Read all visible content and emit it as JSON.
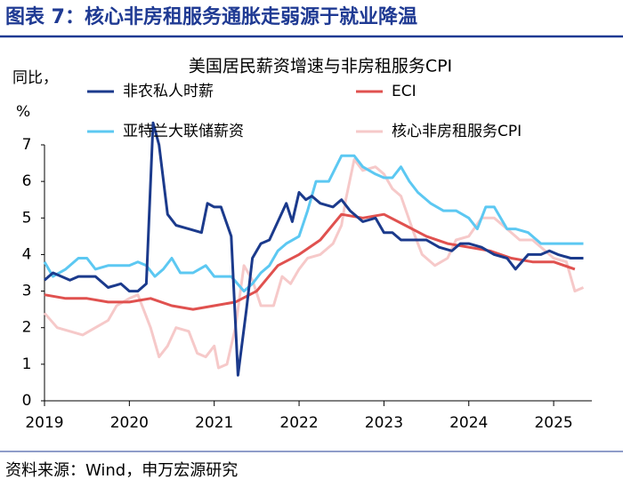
{
  "header": {
    "title": "图表 7：核心非房租服务通胀走弱源于就业降温"
  },
  "chart_data": {
    "type": "line",
    "title": "美国居民薪资增速与非房租服务CPI",
    "y_label": [
      "同比，",
      "%"
    ],
    "xlim": [
      2019,
      2025.45
    ],
    "xticks": [
      2019,
      2020,
      2021,
      2022,
      2023,
      2024,
      2025
    ],
    "ylim": [
      0,
      7
    ],
    "yticks": [
      0,
      1,
      2,
      3,
      4,
      5,
      6,
      7
    ],
    "grid": false,
    "legend": "top",
    "series": [
      {
        "name": "非农私人时薪",
        "color": "#1b3a8c",
        "x": [
          2019.0,
          2019.1,
          2019.2,
          2019.3,
          2019.4,
          2019.5,
          2019.6,
          2019.75,
          2019.9,
          2020.0,
          2020.1,
          2020.2,
          2020.28,
          2020.35,
          2020.45,
          2020.55,
          2020.7,
          2020.85,
          2020.92,
          2021.0,
          2021.08,
          2021.2,
          2021.28,
          2021.38,
          2021.45,
          2021.55,
          2021.65,
          2021.75,
          2021.85,
          2021.92,
          2022.0,
          2022.08,
          2022.15,
          2022.25,
          2022.4,
          2022.5,
          2022.6,
          2022.75,
          2022.9,
          2023.0,
          2023.1,
          2023.2,
          2023.35,
          2023.5,
          2023.65,
          2023.8,
          2023.9,
          2024.0,
          2024.15,
          2024.3,
          2024.45,
          2024.55,
          2024.7,
          2024.85,
          2024.95,
          2025.05,
          2025.2,
          2025.35
        ],
        "values": [
          3.3,
          3.5,
          3.4,
          3.3,
          3.4,
          3.4,
          3.4,
          3.1,
          3.2,
          3.0,
          3.0,
          3.2,
          7.6,
          7.0,
          5.1,
          4.8,
          4.7,
          4.6,
          5.4,
          5.3,
          5.3,
          4.5,
          0.7,
          2.5,
          3.9,
          4.3,
          4.4,
          4.9,
          5.4,
          4.9,
          5.7,
          5.5,
          5.6,
          5.4,
          5.3,
          5.5,
          5.2,
          4.9,
          5.0,
          4.6,
          4.6,
          4.4,
          4.4,
          4.4,
          4.2,
          4.1,
          4.3,
          4.3,
          4.2,
          4.0,
          3.9,
          3.6,
          4.0,
          4.0,
          4.1,
          4.0,
          3.9,
          3.9
        ]
      },
      {
        "name": "ECI",
        "color": "#e0514f",
        "x": [
          2019.0,
          2019.25,
          2019.5,
          2019.75,
          2020.0,
          2020.25,
          2020.5,
          2020.75,
          2021.0,
          2021.25,
          2021.5,
          2021.75,
          2022.0,
          2022.25,
          2022.5,
          2022.75,
          2023.0,
          2023.25,
          2023.5,
          2023.75,
          2024.0,
          2024.25,
          2024.5,
          2024.75,
          2025.0,
          2025.25
        ],
        "values": [
          2.9,
          2.8,
          2.8,
          2.7,
          2.7,
          2.8,
          2.6,
          2.5,
          2.6,
          2.7,
          3.0,
          3.7,
          4.0,
          4.4,
          5.1,
          5.0,
          5.1,
          4.8,
          4.5,
          4.3,
          4.2,
          4.1,
          3.9,
          3.8,
          3.8,
          3.6
        ]
      },
      {
        "name": "亚特兰大联储薪资",
        "color": "#5cc8f2",
        "x": [
          2019.0,
          2019.1,
          2019.25,
          2019.4,
          2019.5,
          2019.6,
          2019.75,
          2019.9,
          2020.0,
          2020.1,
          2020.2,
          2020.3,
          2020.4,
          2020.5,
          2020.6,
          2020.75,
          2020.9,
          2021.0,
          2021.2,
          2021.35,
          2021.45,
          2021.55,
          2021.65,
          2021.75,
          2021.85,
          2022.0,
          2022.1,
          2022.2,
          2022.35,
          2022.5,
          2022.65,
          2022.75,
          2022.9,
          2023.0,
          2023.1,
          2023.2,
          2023.3,
          2023.4,
          2023.55,
          2023.7,
          2023.85,
          2024.0,
          2024.1,
          2024.2,
          2024.3,
          2024.45,
          2024.55,
          2024.7,
          2024.85,
          2025.0,
          2025.15,
          2025.35
        ],
        "values": [
          3.8,
          3.4,
          3.6,
          3.9,
          3.9,
          3.6,
          3.7,
          3.7,
          3.7,
          3.8,
          3.7,
          3.4,
          3.6,
          3.9,
          3.5,
          3.5,
          3.7,
          3.4,
          3.4,
          3.0,
          3.2,
          3.5,
          3.7,
          4.1,
          4.3,
          4.5,
          5.2,
          6.0,
          6.0,
          6.7,
          6.7,
          6.4,
          6.2,
          6.1,
          6.1,
          6.4,
          6.0,
          5.7,
          5.4,
          5.2,
          5.2,
          5.0,
          4.7,
          5.3,
          5.3,
          4.7,
          4.7,
          4.6,
          4.3,
          4.3,
          4.3,
          4.3
        ]
      },
      {
        "name": "核心非房租服务CPI",
        "color": "#f6c9c9",
        "x": [
          2019.0,
          2019.15,
          2019.3,
          2019.45,
          2019.6,
          2019.75,
          2019.85,
          2020.0,
          2020.1,
          2020.25,
          2020.35,
          2020.45,
          2020.55,
          2020.7,
          2020.8,
          2020.9,
          2021.0,
          2021.05,
          2021.15,
          2021.25,
          2021.35,
          2021.45,
          2021.55,
          2021.7,
          2021.8,
          2021.9,
          2022.0,
          2022.1,
          2022.25,
          2022.4,
          2022.5,
          2022.55,
          2022.65,
          2022.75,
          2022.9,
          2023.0,
          2023.1,
          2023.2,
          2023.35,
          2023.45,
          2023.6,
          2023.75,
          2023.85,
          2024.0,
          2024.15,
          2024.3,
          2024.45,
          2024.6,
          2024.75,
          2024.9,
          2025.0,
          2025.15,
          2025.25,
          2025.35
        ],
        "values": [
          2.4,
          2.0,
          1.9,
          1.8,
          2.0,
          2.2,
          2.6,
          2.8,
          2.9,
          2.0,
          1.2,
          1.5,
          2.0,
          1.9,
          1.3,
          1.2,
          1.5,
          0.9,
          1.0,
          2.0,
          3.7,
          3.3,
          2.6,
          2.6,
          3.4,
          3.2,
          3.6,
          3.9,
          4.0,
          4.3,
          4.8,
          5.5,
          6.6,
          6.3,
          6.4,
          6.2,
          5.8,
          5.6,
          4.6,
          4.0,
          3.7,
          3.9,
          4.4,
          4.5,
          5.0,
          5.0,
          4.7,
          4.4,
          4.4,
          4.1,
          3.9,
          3.8,
          3.0,
          3.1
        ]
      }
    ]
  },
  "footer": {
    "source": "资料来源：Wind，申万宏源研究"
  }
}
